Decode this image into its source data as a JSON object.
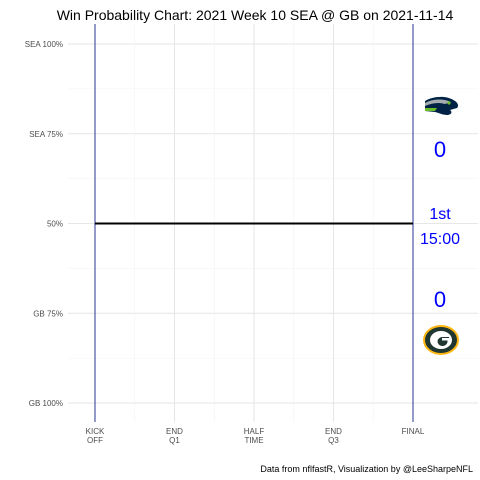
{
  "chart_data": {
    "type": "line",
    "title": "Win Probability Chart: 2021 Week 10 SEA @ GB on 2021-11-14",
    "caption": "Data from nflfastR, Visualization by @LeeSharpeNFL",
    "y_ticks": [
      "SEA 100%",
      "SEA 75%",
      "50%",
      "GB 75%",
      "GB 100%"
    ],
    "y_tick_values": [
      1.0,
      0.75,
      0.5,
      0.25,
      0.0
    ],
    "ylim": [
      0,
      1
    ],
    "x_ticks": [
      {
        "line1": "KICK",
        "line2": "OFF",
        "value": 0
      },
      {
        "line1": "END",
        "line2": "Q1",
        "value": 900
      },
      {
        "line1": "HALF",
        "line2": "TIME",
        "value": 1800
      },
      {
        "line1": "END",
        "line2": "Q3",
        "value": 2700
      },
      {
        "line1": "FINAL",
        "line2": "",
        "value": 3600
      }
    ],
    "xlim": [
      0,
      3600
    ],
    "series": [
      {
        "values": [
          {
            "x": 0,
            "y": 0.5
          },
          {
            "x": 3600,
            "y": 0.5
          }
        ],
        "color": "#000000"
      }
    ],
    "vertical_lines": [
      0,
      3600
    ],
    "vertical_line_color": "#283593",
    "grid": true,
    "annotations": {
      "away_team_icon": "seahawks-logo-icon",
      "away_score": "0",
      "game_quarter": "1st",
      "game_clock": "15:00",
      "home_score": "0",
      "home_team_icon": "packers-logo-icon",
      "score_color": "#0000ff"
    },
    "colors": {
      "seahawks_navy": "#002244",
      "seahawks_green": "#69BE28",
      "seahawks_grey": "#A5ACAF",
      "packers_green": "#203731",
      "packers_gold": "#FFB612"
    }
  }
}
